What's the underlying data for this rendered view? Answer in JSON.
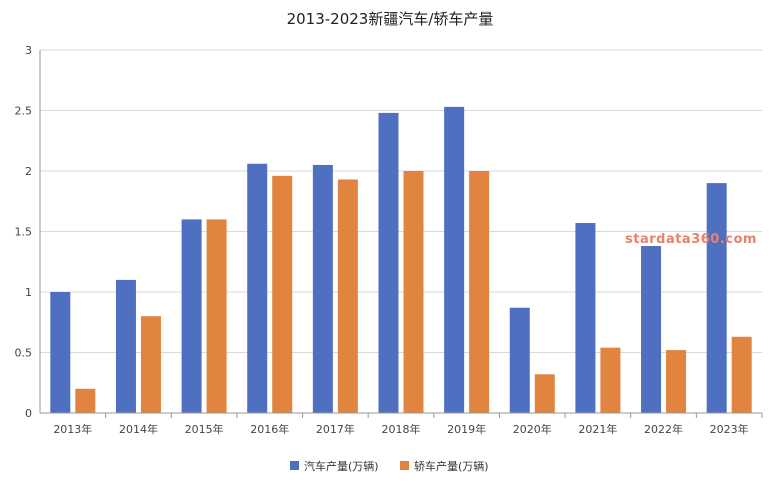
{
  "chart_data": {
    "type": "bar",
    "title": "2013-2023新疆汽车/轿车产量",
    "xlabel": "",
    "ylabel": "",
    "categories": [
      "2013年",
      "2014年",
      "2015年",
      "2016年",
      "2017年",
      "2018年",
      "2019年",
      "2020年",
      "2021年",
      "2022年",
      "2023年"
    ],
    "series": [
      {
        "name": "汽车产量(万辆)",
        "color": "#4f70c0",
        "values": [
          1.0,
          1.1,
          1.6,
          2.06,
          2.05,
          2.48,
          2.53,
          0.87,
          1.57,
          1.38,
          1.9
        ]
      },
      {
        "name": "轿车产量(万辆)",
        "color": "#e0843f",
        "values": [
          0.2,
          0.8,
          1.6,
          1.96,
          1.93,
          2.0,
          2.0,
          0.32,
          0.54,
          0.52,
          0.63
        ]
      }
    ],
    "ylim": [
      0,
      3
    ],
    "yticks": [
      0,
      0.5,
      1,
      1.5,
      2,
      2.5,
      3
    ],
    "ytick_labels": [
      "0",
      "0.5",
      "1",
      "1.5",
      "2",
      "2.5",
      "3"
    ],
    "grid": true,
    "legend": "bottom-center"
  },
  "watermark": "stardata360.com"
}
